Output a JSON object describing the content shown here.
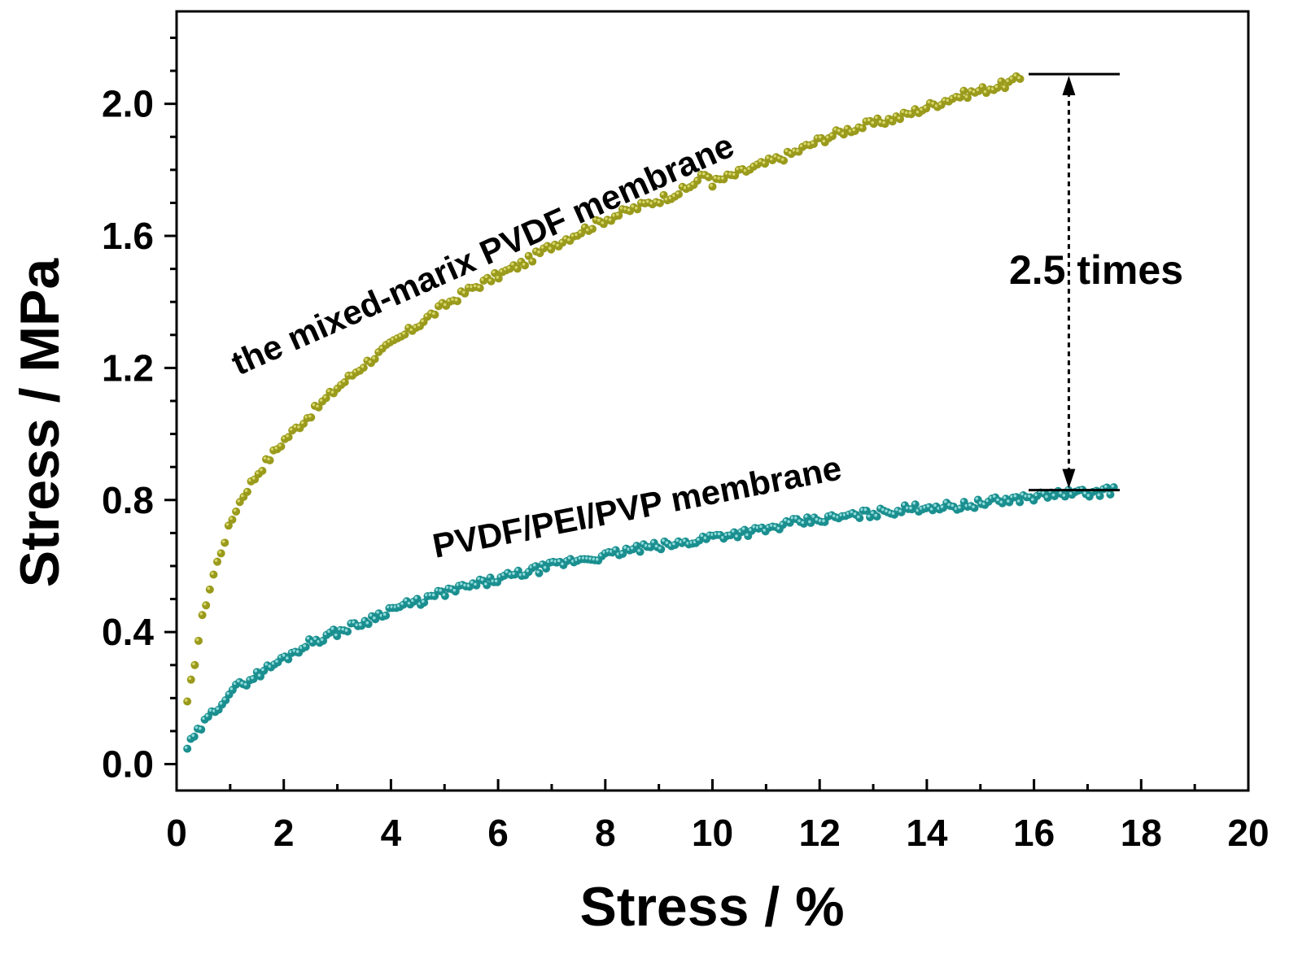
{
  "chart_data": {
    "type": "scatter",
    "title": "",
    "xlabel": "Stress / %",
    "ylabel": "Stress / MPa",
    "xlim": [
      0,
      20
    ],
    "ylim": [
      -0.08,
      2.28
    ],
    "x_ticks": [
      0,
      2,
      4,
      6,
      8,
      10,
      12,
      14,
      16,
      18,
      20
    ],
    "x_tick_labels": [
      "0",
      "2",
      "4",
      "6",
      "8",
      "10",
      "12",
      "14",
      "16",
      "18",
      "20"
    ],
    "y_ticks": [
      0.0,
      0.4,
      0.8,
      1.2,
      1.6,
      2.0
    ],
    "y_tick_labels": [
      "0.0",
      "0.4",
      "0.8",
      "1.2",
      "1.6",
      "2.0"
    ],
    "grid": false,
    "series": [
      {
        "name": "the mixed-marix PVDF membrane",
        "color": "#9a9a1c",
        "highlight": "#d6d66a",
        "x": [
          0.2,
          0.35,
          0.5,
          0.7,
          0.9,
          1.1,
          1.3,
          1.6,
          2.0,
          2.5,
          3.0,
          3.5,
          4.0,
          4.5,
          5.0,
          5.5,
          6.0,
          6.5,
          7.0,
          7.5,
          8.0,
          8.5,
          9.0,
          9.5,
          9.9,
          10.0,
          10.5,
          11.0,
          11.5,
          12.0,
          12.5,
          13.0,
          13.5,
          14.0,
          14.5,
          15.0,
          15.5,
          15.8
        ],
        "y": [
          0.18,
          0.32,
          0.46,
          0.58,
          0.68,
          0.77,
          0.83,
          0.9,
          0.98,
          1.06,
          1.14,
          1.21,
          1.27,
          1.33,
          1.39,
          1.44,
          1.48,
          1.52,
          1.57,
          1.61,
          1.65,
          1.68,
          1.71,
          1.74,
          1.79,
          1.76,
          1.79,
          1.82,
          1.85,
          1.89,
          1.92,
          1.94,
          1.96,
          1.99,
          2.02,
          2.04,
          2.06,
          2.08
        ]
      },
      {
        "name": "PVDF/PEI/PVP membrane",
        "color": "#1b8f8f",
        "highlight": "#8fdada",
        "x": [
          0.2,
          0.5,
          0.8,
          1.0,
          1.5,
          2.0,
          2.5,
          3.0,
          3.5,
          4.0,
          4.5,
          5.0,
          5.5,
          6.0,
          6.5,
          7.0,
          7.5,
          8.0,
          8.5,
          9.0,
          9.5,
          10.0,
          10.5,
          11.0,
          11.5,
          12.0,
          12.5,
          13.0,
          13.5,
          14.0,
          14.5,
          15.0,
          15.5,
          16.0,
          16.5,
          17.0,
          17.5
        ],
        "y": [
          0.05,
          0.12,
          0.18,
          0.22,
          0.27,
          0.32,
          0.37,
          0.4,
          0.43,
          0.47,
          0.49,
          0.52,
          0.54,
          0.56,
          0.58,
          0.6,
          0.62,
          0.63,
          0.65,
          0.66,
          0.67,
          0.69,
          0.7,
          0.71,
          0.73,
          0.74,
          0.75,
          0.76,
          0.77,
          0.78,
          0.78,
          0.79,
          0.8,
          0.81,
          0.82,
          0.82,
          0.83
        ]
      }
    ],
    "annotations": {
      "curve_label_top": "the mixed-marix PVDF membrane",
      "curve_label_bottom": "PVDF/PEI/PVP membrane",
      "ratio_label": "2.5 times",
      "ratio_marker": {
        "x": 16.65,
        "y_top": 2.09,
        "y_bottom": 0.83,
        "line_x_start": 15.9,
        "line_x_end": 17.6
      }
    }
  }
}
